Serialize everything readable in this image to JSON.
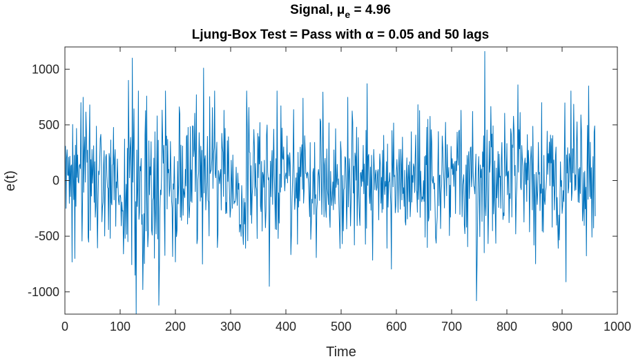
{
  "chart_data": {
    "type": "line",
    "title": {
      "prefix": "Signal, μ",
      "subscript": "e",
      "suffix": " = 4.96"
    },
    "subtitle": "Ljung-Box Test = Pass with α = 0.05 and 50 lags",
    "xlabel": "Time",
    "ylabel": "e(t)",
    "xlim": [
      0,
      1000
    ],
    "ylim": [
      -1200,
      1200
    ],
    "xticks": [
      0,
      100,
      200,
      300,
      400,
      500,
      600,
      700,
      800,
      900,
      1000
    ],
    "xtick_labels": [
      "0",
      "100",
      "200",
      "300",
      "400",
      "500",
      "600",
      "700",
      "800",
      "900",
      "1000"
    ],
    "yticks": [
      1000,
      500,
      0,
      -500,
      -1000
    ],
    "ytick_labels": [
      "1000",
      "500",
      "0",
      "-500",
      "-1000"
    ],
    "grid": false,
    "box": true,
    "series": [
      {
        "color": "#0072BD",
        "n_points": 960,
        "x_start": 1,
        "x_end": 960,
        "mean": 4.96,
        "extremes": [
          {
            "x": 2,
            "y": -250
          },
          {
            "x": 7,
            "y": 210
          },
          {
            "x": 18,
            "y": -700
          },
          {
            "x": 29,
            "y": 700
          },
          {
            "x": 115,
            "y": 900
          },
          {
            "x": 122,
            "y": 1100
          },
          {
            "x": 127,
            "y": -850
          },
          {
            "x": 129,
            "y": -1200
          },
          {
            "x": 141,
            "y": -980
          },
          {
            "x": 170,
            "y": -1120
          },
          {
            "x": 251,
            "y": 1010
          },
          {
            "x": 370,
            "y": -950
          },
          {
            "x": 547,
            "y": 870
          },
          {
            "x": 745,
            "y": -1080
          },
          {
            "x": 760,
            "y": 1160
          },
          {
            "x": 820,
            "y": 860
          },
          {
            "x": 907,
            "y": -910
          },
          {
            "x": 948,
            "y": 850
          },
          {
            "x": 960,
            "y": -320
          }
        ]
      }
    ]
  }
}
